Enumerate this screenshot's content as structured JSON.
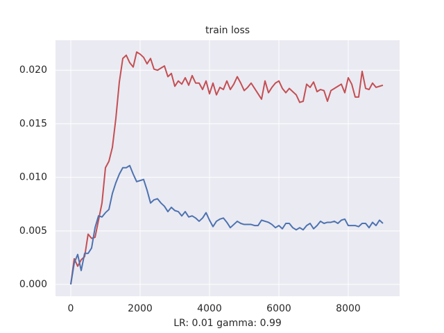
{
  "chart_data": {
    "type": "line",
    "title": "train loss",
    "x_label": "LR: 0.01 gamma: 0.99",
    "x": [
      0,
      100,
      200,
      300,
      400,
      500,
      600,
      700,
      800,
      900,
      1000,
      1100,
      1200,
      1300,
      1400,
      1500,
      1600,
      1700,
      1800,
      1900,
      2000,
      2100,
      2200,
      2300,
      2400,
      2500,
      2600,
      2700,
      2800,
      2900,
      3000,
      3100,
      3200,
      3300,
      3400,
      3500,
      3600,
      3700,
      3800,
      3900,
      4000,
      4100,
      4200,
      4300,
      4400,
      4500,
      4600,
      4700,
      4800,
      4900,
      5000,
      5100,
      5200,
      5300,
      5400,
      5500,
      5600,
      5700,
      5800,
      5900,
      6000,
      6100,
      6200,
      6300,
      6400,
      6500,
      6600,
      6700,
      6800,
      6900,
      7000,
      7100,
      7200,
      7300,
      7400,
      7500,
      7600,
      7700,
      7800,
      7900,
      8000,
      8100,
      8200,
      8300,
      8400,
      8500,
      8600,
      8700,
      8800,
      8900,
      9000
    ],
    "series": [
      {
        "color": "#c44e52",
        "values": [
          0,
          0.0024,
          0.0017,
          0.0023,
          0.0026,
          0.0047,
          0.0043,
          0.0044,
          0.006,
          0.0076,
          0.0109,
          0.0115,
          0.0128,
          0.0155,
          0.0189,
          0.0211,
          0.0214,
          0.0207,
          0.0203,
          0.0217,
          0.0215,
          0.0212,
          0.0206,
          0.0211,
          0.0201,
          0.02,
          0.0202,
          0.0204,
          0.0194,
          0.0197,
          0.0185,
          0.019,
          0.0187,
          0.0193,
          0.0186,
          0.0195,
          0.0188,
          0.0188,
          0.0182,
          0.019,
          0.0178,
          0.0188,
          0.0177,
          0.0184,
          0.0182,
          0.019,
          0.0182,
          0.0187,
          0.0194,
          0.0188,
          0.0181,
          0.0184,
          0.0188,
          0.0183,
          0.0178,
          0.0173,
          0.019,
          0.0179,
          0.0184,
          0.0188,
          0.019,
          0.0183,
          0.0179,
          0.0183,
          0.018,
          0.0177,
          0.017,
          0.0171,
          0.0187,
          0.0184,
          0.0189,
          0.018,
          0.0182,
          0.0181,
          0.0171,
          0.0181,
          0.0183,
          0.0185,
          0.0187,
          0.0179,
          0.0193,
          0.0187,
          0.0175,
          0.0175,
          0.0199,
          0.0183,
          0.0182,
          0.0188,
          0.0184,
          0.0185,
          0.0186
        ]
      },
      {
        "color": "#4c72b0",
        "values": [
          0,
          0.002,
          0.0028,
          0.0013,
          0.0029,
          0.0029,
          0.0034,
          0.0053,
          0.0064,
          0.0063,
          0.0067,
          0.007,
          0.0085,
          0.0095,
          0.0103,
          0.0109,
          0.0109,
          0.0111,
          0.0103,
          0.0096,
          0.0097,
          0.0098,
          0.0088,
          0.0076,
          0.0079,
          0.008,
          0.0076,
          0.0073,
          0.0068,
          0.0072,
          0.0069,
          0.0068,
          0.0064,
          0.0068,
          0.0063,
          0.0064,
          0.0062,
          0.0059,
          0.0062,
          0.0067,
          0.006,
          0.0054,
          0.0059,
          0.0061,
          0.0062,
          0.0058,
          0.0053,
          0.0056,
          0.0059,
          0.0057,
          0.0056,
          0.0056,
          0.0056,
          0.0055,
          0.0055,
          0.006,
          0.0059,
          0.0058,
          0.0056,
          0.0053,
          0.0055,
          0.0052,
          0.0057,
          0.0057,
          0.0053,
          0.0051,
          0.0053,
          0.0051,
          0.0055,
          0.0057,
          0.0052,
          0.0055,
          0.0059,
          0.0057,
          0.0058,
          0.0058,
          0.0059,
          0.0057,
          0.006,
          0.0061,
          0.0055,
          0.0055,
          0.0055,
          0.0054,
          0.0057,
          0.0057,
          0.0053,
          0.0058,
          0.0055,
          0.006,
          0.0057
        ]
      }
    ],
    "xlim": [
      -440,
      9480
    ],
    "xticks": [
      0,
      2000,
      4000,
      6000,
      8000
    ],
    "ylim": [
      -0.0011,
      0.0228
    ],
    "yticks": [
      {
        "value": 0,
        "label": "0.000"
      },
      {
        "value": 0.005,
        "label": "0.005"
      },
      {
        "value": 0.01,
        "label": "0.010"
      },
      {
        "value": 0.015,
        "label": "0.015"
      },
      {
        "value": 0.02,
        "label": "0.020"
      }
    ],
    "grid": true,
    "background": "#eaeaf2"
  }
}
